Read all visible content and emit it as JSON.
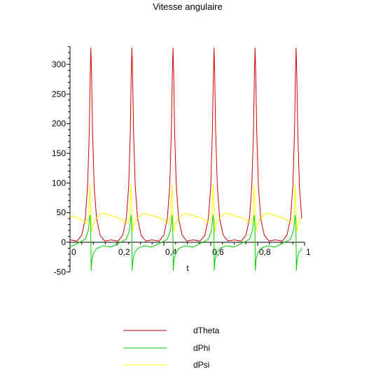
{
  "chart_data": {
    "type": "line",
    "title": "Vitesse angulaire",
    "xlabel": "t",
    "ylabel": "",
    "xlim": [
      0,
      1
    ],
    "ylim": [
      -50,
      330
    ],
    "x_ticks": [
      0,
      0.2,
      0.4,
      0.6,
      0.8,
      1
    ],
    "x_tick_labels": [
      "0",
      "0,2",
      "0,4",
      "0,6",
      "0,8",
      "1"
    ],
    "y_ticks": [
      -50,
      0,
      50,
      100,
      150,
      200,
      250,
      300
    ],
    "y_tick_labels": [
      "-50",
      "0",
      "50",
      "100",
      "150",
      "200",
      "250",
      "300"
    ],
    "grid": false,
    "legend_position": "bottom",
    "period": 0.175,
    "peak_times": [
      0.089,
      0.264,
      0.439,
      0.614,
      0.789,
      0.964
    ],
    "series": [
      {
        "name": "dTheta",
        "color": "#cc0000",
        "t": [
          0.0,
          0.03,
          0.05,
          0.065,
          0.075,
          0.082,
          0.086,
          0.089,
          0.092,
          0.096,
          0.103,
          0.113,
          0.128,
          0.148,
          0.175
        ],
        "values": [
          4,
          2,
          12,
          40,
          95,
          185,
          280,
          328,
          280,
          185,
          95,
          40,
          12,
          2,
          4
        ]
      },
      {
        "name": "dPhi",
        "color": "#00cc00",
        "t": [
          0.0,
          0.04,
          0.065,
          0.078,
          0.085,
          0.088,
          0.089,
          0.09,
          0.093,
          0.1,
          0.115,
          0.14,
          0.175
        ],
        "values": [
          -8,
          0,
          5,
          20,
          46,
          30,
          0,
          -48,
          -30,
          -18,
          -10,
          -6,
          -8
        ]
      },
      {
        "name": "dPsi",
        "color": "#ffff00",
        "t": [
          0.0,
          0.04,
          0.07,
          0.08,
          0.085,
          0.089,
          0.093,
          0.098,
          0.11,
          0.135,
          0.16,
          0.175
        ],
        "values": [
          45,
          40,
          32,
          45,
          98,
          50,
          18,
          30,
          40,
          49,
          47,
          45
        ]
      }
    ]
  }
}
